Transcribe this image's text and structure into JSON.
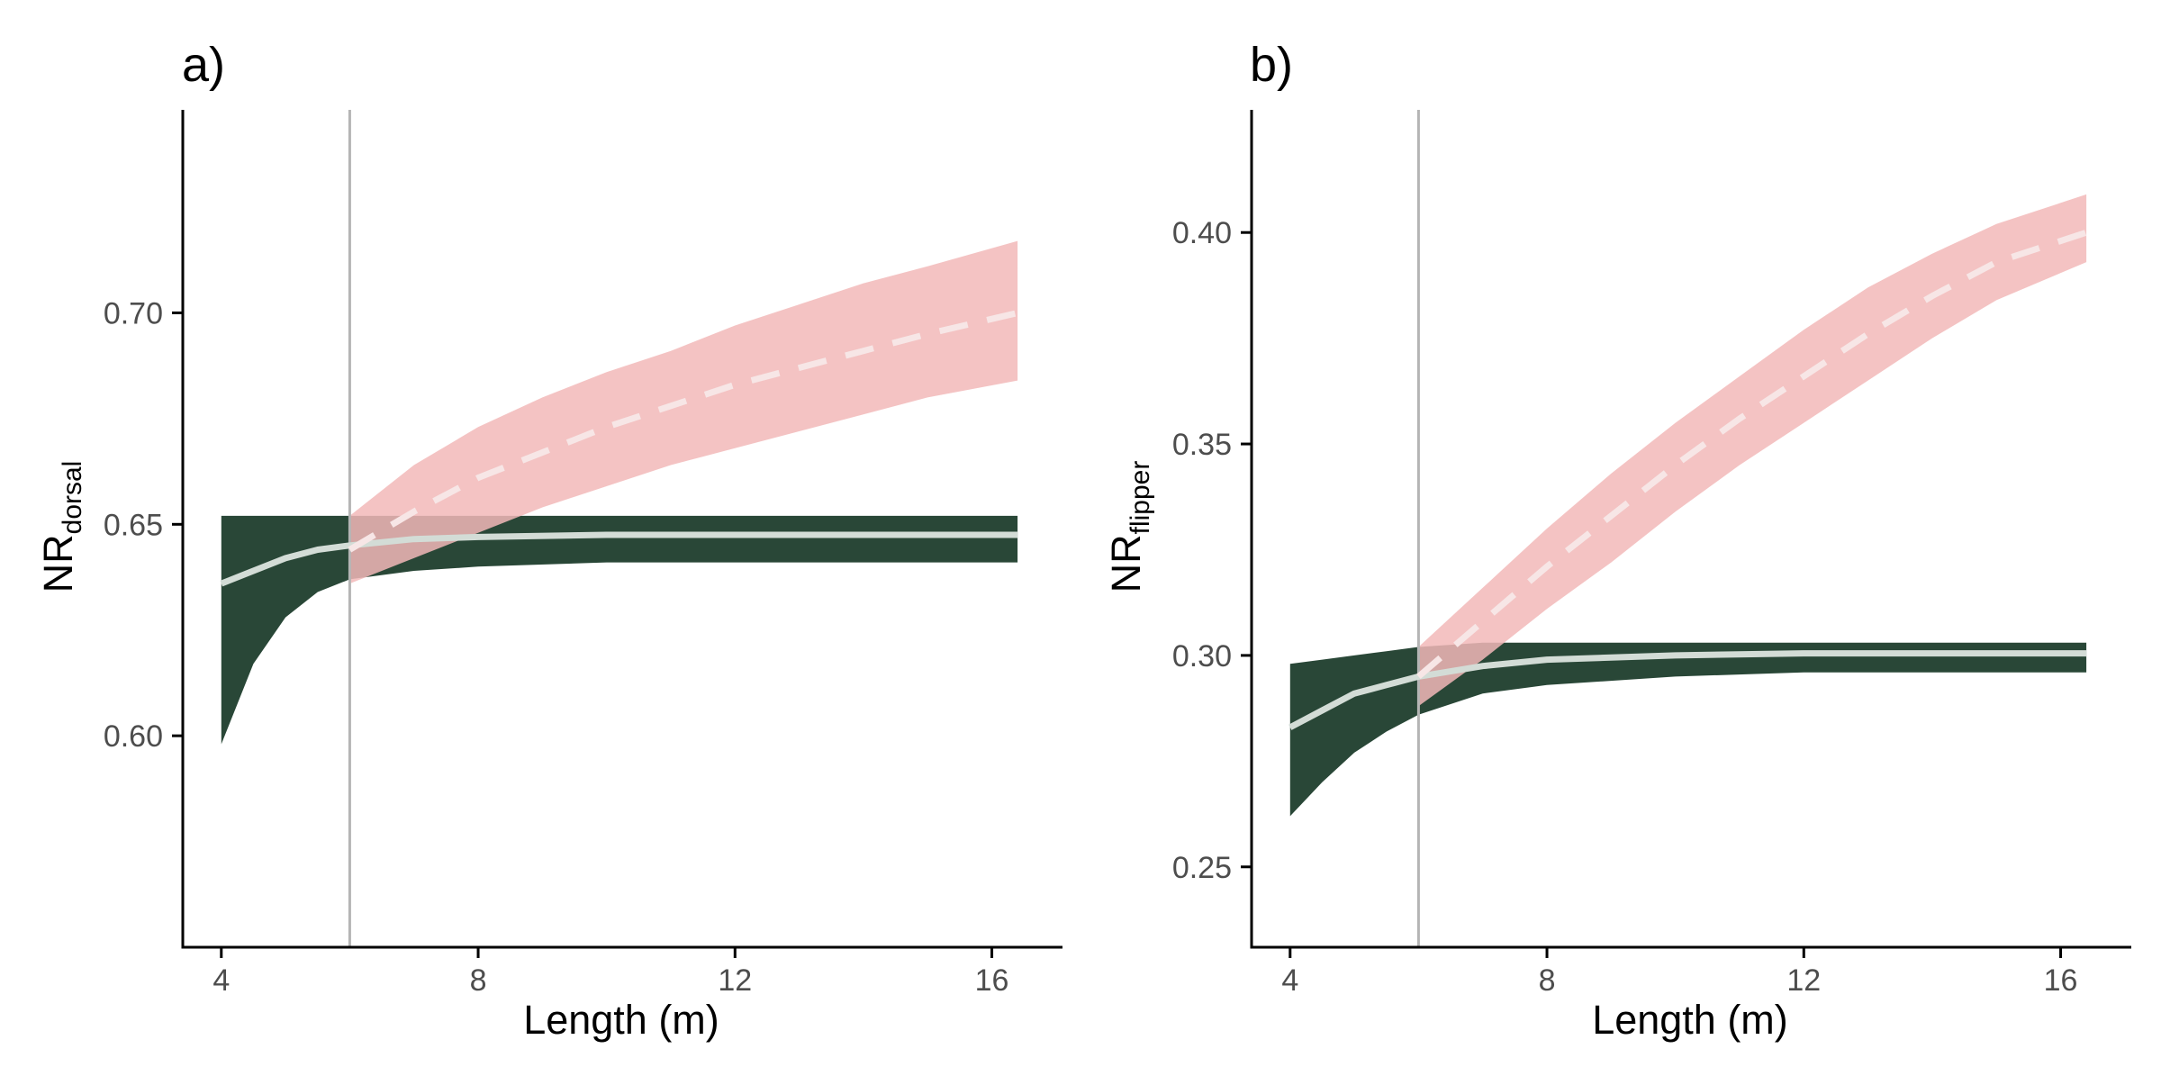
{
  "colors": {
    "juvenile_band": "#1e3d2c",
    "adult_band": "#f2b8b8",
    "mean_line": "#d3dcd6",
    "adult_mean_line": "#f7e6e6",
    "threshold_line": "#b5b5b5",
    "axis": "#000000"
  },
  "chart_data": [
    {
      "type": "line",
      "panel_label": "a)",
      "xlabel": "Length (m)",
      "ylabel_main": "NR",
      "ylabel_sub": "dorsal",
      "xlim": [
        3.4,
        17.1
      ],
      "ylim": [
        0.55,
        0.748
      ],
      "xticks": [
        4,
        8,
        12,
        16
      ],
      "xtick_labels": [
        "4",
        "8",
        "12",
        "16"
      ],
      "yticks": [
        0.6,
        0.65,
        0.7
      ],
      "ytick_labels": [
        "0.60",
        "0.65",
        "0.70"
      ],
      "threshold_x": 6,
      "series": [
        {
          "group": "juvenile",
          "style": "solid",
          "x": [
            4,
            4.5,
            5,
            5.5,
            6,
            7,
            8,
            10,
            12,
            14,
            16.4
          ],
          "y": [
            0.636,
            0.639,
            0.642,
            0.644,
            0.645,
            0.6465,
            0.647,
            0.6475,
            0.6475,
            0.6475,
            0.6475
          ],
          "band_lower": [
            0.598,
            0.617,
            0.628,
            0.634,
            0.637,
            0.639,
            0.64,
            0.641,
            0.641,
            0.641,
            0.641
          ],
          "band_upper": [
            0.652,
            0.652,
            0.652,
            0.652,
            0.652,
            0.652,
            0.652,
            0.652,
            0.652,
            0.652,
            0.652
          ]
        },
        {
          "group": "adult",
          "style": "dashed",
          "x": [
            6,
            7,
            8,
            9,
            10,
            11,
            12,
            13,
            14,
            15,
            16.4
          ],
          "y": [
            0.644,
            0.653,
            0.661,
            0.667,
            0.673,
            0.678,
            0.683,
            0.687,
            0.691,
            0.695,
            0.7
          ],
          "band_lower": [
            0.636,
            0.642,
            0.648,
            0.654,
            0.659,
            0.664,
            0.668,
            0.672,
            0.676,
            0.68,
            0.684
          ],
          "band_upper": [
            0.652,
            0.664,
            0.673,
            0.68,
            0.686,
            0.691,
            0.697,
            0.702,
            0.707,
            0.711,
            0.717
          ]
        }
      ]
    },
    {
      "type": "line",
      "panel_label": "b)",
      "xlabel": "Length (m)",
      "ylabel_main": "NR",
      "ylabel_sub": "flipper",
      "xlim": [
        3.4,
        17.1
      ],
      "ylim": [
        0.231,
        0.429
      ],
      "xticks": [
        4,
        8,
        12,
        16
      ],
      "xtick_labels": [
        "4",
        "8",
        "12",
        "16"
      ],
      "yticks": [
        0.25,
        0.3,
        0.35,
        0.4
      ],
      "ytick_labels": [
        "0.25",
        "0.30",
        "0.35",
        "0.40"
      ],
      "threshold_x": 6,
      "series": [
        {
          "group": "juvenile",
          "style": "solid",
          "x": [
            4,
            4.5,
            5,
            5.5,
            6,
            7,
            8,
            10,
            12,
            14,
            16.4
          ],
          "y": [
            0.283,
            0.287,
            0.291,
            0.293,
            0.295,
            0.2975,
            0.299,
            0.3,
            0.3005,
            0.3005,
            0.3005
          ],
          "band_lower": [
            0.262,
            0.27,
            0.277,
            0.282,
            0.286,
            0.291,
            0.293,
            0.295,
            0.296,
            0.296,
            0.296
          ],
          "band_upper": [
            0.298,
            0.299,
            0.3,
            0.301,
            0.302,
            0.303,
            0.303,
            0.303,
            0.303,
            0.303,
            0.303
          ]
        },
        {
          "group": "adult",
          "style": "dashed",
          "x": [
            6,
            7,
            8,
            9,
            10,
            11,
            12,
            13,
            14,
            15,
            16.4
          ],
          "y": [
            0.295,
            0.308,
            0.321,
            0.333,
            0.345,
            0.356,
            0.366,
            0.376,
            0.385,
            0.393,
            0.4
          ],
          "band_lower": [
            0.288,
            0.299,
            0.311,
            0.322,
            0.334,
            0.345,
            0.355,
            0.365,
            0.375,
            0.384,
            0.393
          ],
          "band_upper": [
            0.302,
            0.316,
            0.33,
            0.343,
            0.355,
            0.366,
            0.377,
            0.387,
            0.395,
            0.402,
            0.409
          ]
        }
      ]
    }
  ]
}
